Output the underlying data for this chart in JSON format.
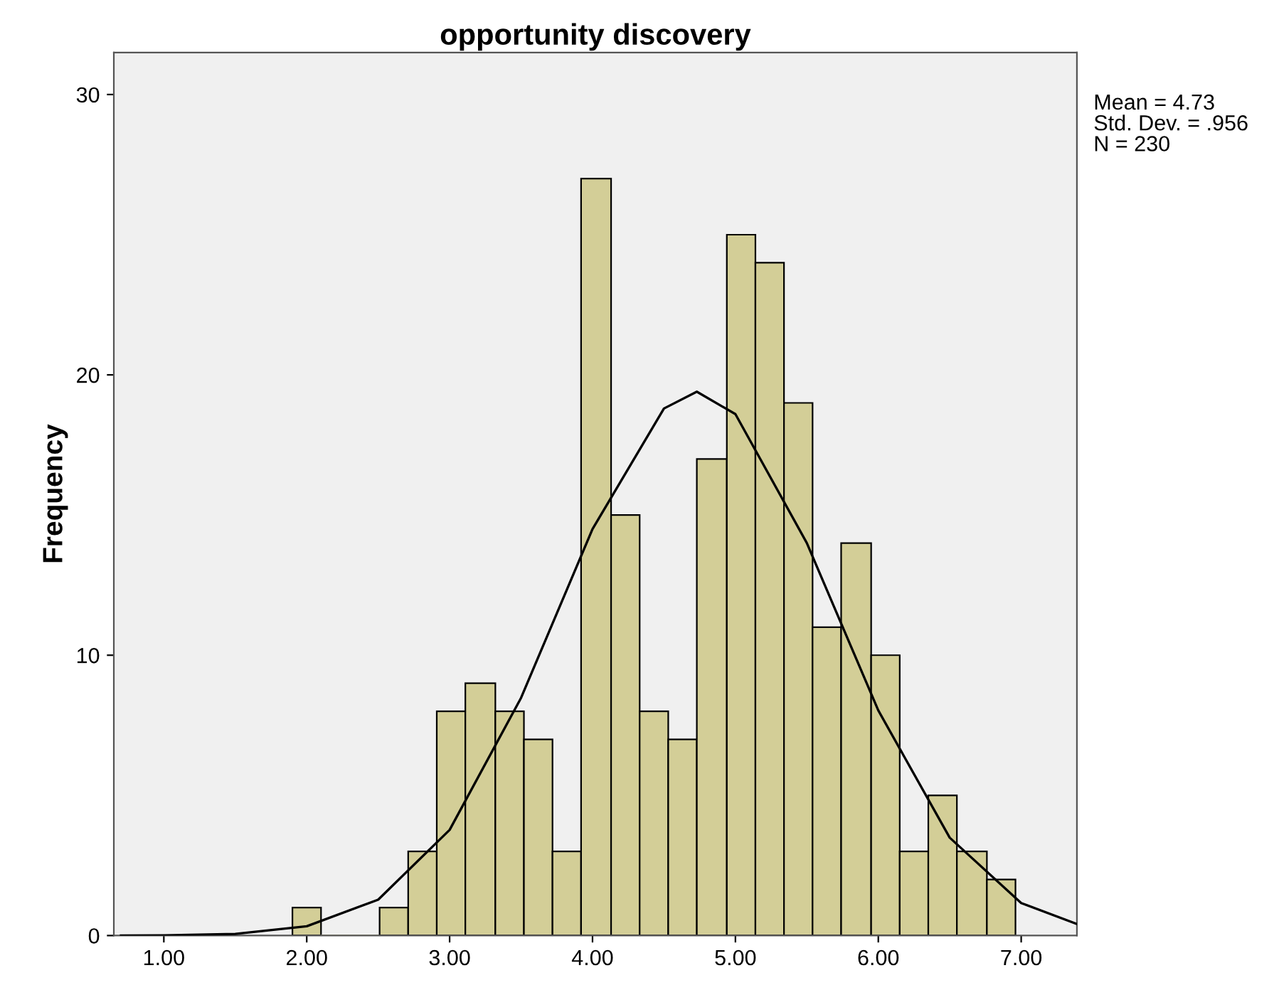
{
  "chart_data": {
    "type": "histogram",
    "title": "opportunity discovery",
    "ylabel": "Frequency",
    "bins": [
      1.9,
      2.1,
      2.3,
      2.51,
      2.71,
      2.91,
      3.11,
      3.32,
      3.52,
      3.72,
      3.92,
      4.13,
      4.33,
      4.53,
      4.73,
      4.94,
      5.14,
      5.34,
      5.54,
      5.74,
      5.95,
      6.15,
      6.35,
      6.55,
      6.76,
      6.96
    ],
    "values": [
      1,
      0,
      0,
      1,
      3,
      8,
      9,
      8,
      7,
      3,
      27,
      15,
      8,
      7,
      17,
      25,
      24,
      19,
      11,
      14,
      10,
      3,
      5,
      3,
      2
    ],
    "color": "#d3ce97",
    "series": [
      {
        "type": "line",
        "color": "#000000",
        "x": [
          0.7,
          1.0,
          1.5,
          2.0,
          2.5,
          3.0,
          3.5,
          4.0,
          4.5,
          4.73,
          5.0,
          5.5,
          6.0,
          6.5,
          7.0,
          7.39
        ],
        "values": [
          0.0,
          0.01,
          0.06,
          0.33,
          1.28,
          3.77,
          8.48,
          14.5,
          18.8,
          19.4,
          18.6,
          14.0,
          8.03,
          3.49,
          1.16,
          0.41
        ]
      }
    ],
    "xlim": [
      0.65,
      7.39
    ],
    "ylim": [
      0,
      31.5
    ],
    "xticks": [
      {
        "value": 1,
        "label": "1.00"
      },
      {
        "value": 2,
        "label": "2.00"
      },
      {
        "value": 3,
        "label": "3.00"
      },
      {
        "value": 4,
        "label": "4.00"
      },
      {
        "value": 5,
        "label": "5.00"
      },
      {
        "value": 6,
        "label": "6.00"
      },
      {
        "value": 7,
        "label": "7.00"
      }
    ],
    "yticks": [
      0,
      10,
      20,
      30
    ],
    "grid": false,
    "annotations": [
      "Mean = 4.73",
      "Std. Dev. = .956",
      "N = 230"
    ]
  }
}
